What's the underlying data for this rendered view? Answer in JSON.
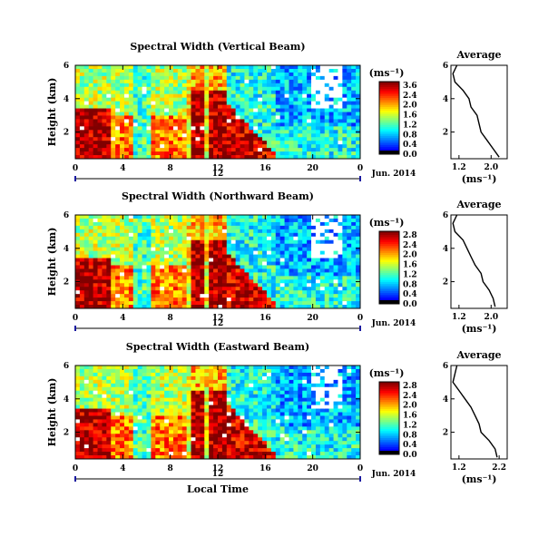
{
  "panels": [
    {
      "title": "Spectral Width (Vertical Beam)",
      "avg_title": "Average",
      "avg_x_ticks": [
        "1.2",
        "2.0"
      ]
    },
    {
      "title": "Spectral Width (Northward Beam)",
      "avg_title": "Average",
      "avg_x_ticks": [
        "1.2",
        "2.0"
      ]
    },
    {
      "title": "Spectral Width (Eastward Beam)",
      "avg_title": "Average",
      "avg_x_ticks": [
        "1.2",
        "2.2"
      ]
    }
  ],
  "y_label": "Height (km)",
  "unit_label": "(ms⁻¹)",
  "x_label": "Local Time",
  "date_label": "Jun. 2014",
  "day_label": "12",
  "chart_data": {
    "type": "heatmap",
    "x_ticks": [
      "0",
      "4",
      "8",
      "12",
      "16",
      "20",
      "0"
    ],
    "y_ticks": [
      "6",
      "4",
      "2"
    ],
    "y_range_km": [
      0.4,
      6
    ],
    "avg_y_ticks": [
      "6",
      "4",
      "2"
    ],
    "colorbars": [
      [
        "3.6",
        "2.4",
        "2.0",
        "1.6",
        "1.2",
        "0.8",
        "0.4",
        "0.0"
      ],
      [
        "2.8",
        "2.4",
        "2.0",
        "1.6",
        "1.2",
        "0.8",
        "0.4",
        "0.0"
      ],
      [
        "2.8",
        "2.4",
        "2.0",
        "1.6",
        "1.2",
        "0.8",
        "0.4",
        "0.0"
      ]
    ],
    "averages": [
      {
        "height_km": [
          0.5,
          1.0,
          1.5,
          2.0,
          2.5,
          3.0,
          3.5,
          4.0,
          4.5,
          5.0,
          5.5,
          6.0
        ],
        "width": [
          2.2,
          2.05,
          1.9,
          1.75,
          1.7,
          1.65,
          1.5,
          1.45,
          1.3,
          1.1,
          1.05,
          1.15
        ]
      },
      {
        "height_km": [
          0.5,
          1.0,
          1.5,
          2.0,
          2.5,
          3.0,
          3.5,
          4.0,
          4.5,
          5.0,
          5.5,
          6.0
        ],
        "width": [
          2.1,
          2.05,
          1.95,
          1.8,
          1.75,
          1.6,
          1.5,
          1.4,
          1.3,
          1.1,
          1.05,
          1.15
        ]
      },
      {
        "height_km": [
          0.5,
          1.0,
          1.5,
          2.0,
          2.5,
          3.0,
          3.5,
          4.0,
          4.5,
          5.0,
          5.5,
          6.0
        ],
        "width": [
          2.15,
          2.1,
          1.95,
          1.75,
          1.7,
          1.6,
          1.5,
          1.35,
          1.2,
          1.05,
          1.1,
          1.15
        ]
      }
    ]
  }
}
